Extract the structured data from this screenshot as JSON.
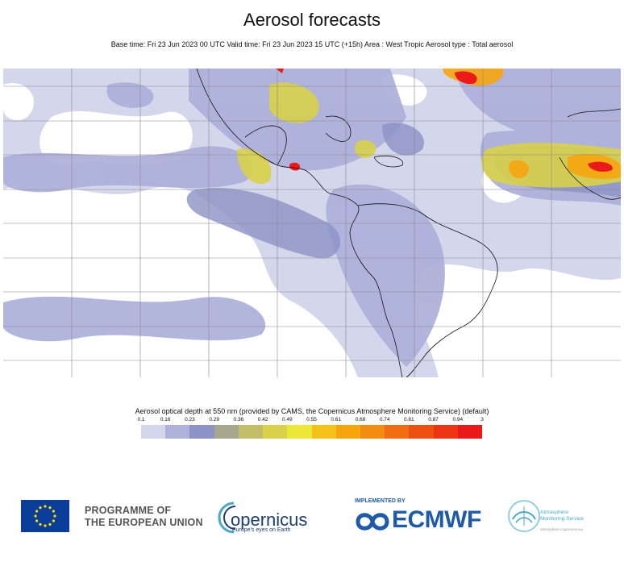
{
  "header": {
    "title": "Aerosol forecasts",
    "subtitle": "Base time: Fri 23 Jun 2023 00 UTC Valid time: Fri 23 Jun 2023 15 UTC (+15h) Area : West Tropic Aerosol type : Total aerosol"
  },
  "legend": {
    "title": "Aerosol optical depth at 550 nm (provided by CAMS, the Copernicus Atmosphere Monitoring Service) (default)",
    "ticks": [
      "0.1",
      "0.16",
      "0.23",
      "0.29",
      "0.36",
      "0.42",
      "0.49",
      "0.55",
      "0.61",
      "0.68",
      "0.74",
      "0.81",
      "0.87",
      "0.94",
      "3"
    ],
    "colors": [
      "#d4d6ec",
      "#aeb1da",
      "#8c92c6",
      "#a5a88f",
      "#c2be6a",
      "#d9d24a",
      "#ece637",
      "#f5c118",
      "#f7a50f",
      "#f48c10",
      "#f06e10",
      "#ee5012",
      "#ec3415",
      "#ea1a1a"
    ]
  },
  "footer": {
    "eu_line1": "PROGRAMME OF",
    "eu_line2": "THE EUROPEAN UNION",
    "copernicus_name": "opernicus",
    "copernicus_tagline": "Europe's eyes on Earth",
    "implemented_by": "IMPLEMENTED BY",
    "ecmwf": "ECMWF",
    "cams_line1": "Atmosphere",
    "cams_line2": "Monitoring Service",
    "cams_url": "atmosphere.copernicus.eu"
  },
  "map": {
    "colors": {
      "low": "#d4d6ec",
      "mid": "#aeb1da",
      "high": "#8c92c6",
      "yellow": "#d9d24a",
      "orange": "#f7a50f",
      "red": "#ea1a1a"
    }
  }
}
